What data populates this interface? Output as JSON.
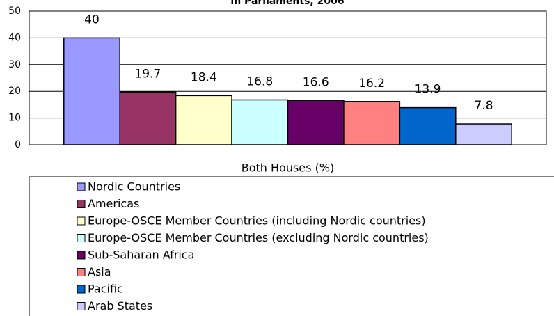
{
  "chart_data": {
    "type": "bar",
    "title": "in Parliaments, 2006",
    "categories": [
      "Both Houses (%)"
    ],
    "series": [
      {
        "name": "Nordic Countries",
        "color": "#9999ff",
        "values": [
          40
        ]
      },
      {
        "name": "Americas",
        "color": "#993366",
        "values": [
          19.7
        ]
      },
      {
        "name": "Europe-OSCE Member Countries (including Nordic countries)",
        "color": "#ffffcc",
        "values": [
          18.4
        ]
      },
      {
        "name": "Europe-OSCE Member Countries (excluding Nordic countries)",
        "color": "#ccffff",
        "values": [
          16.8
        ]
      },
      {
        "name": "Sub-Saharan Africa",
        "color": "#660066",
        "values": [
          16.6
        ]
      },
      {
        "name": "Asia",
        "color": "#ff8080",
        "values": [
          16.2
        ]
      },
      {
        "name": "Pacific",
        "color": "#0066cc",
        "values": [
          13.9
        ]
      },
      {
        "name": "Arab States",
        "color": "#ccccff",
        "values": [
          7.8
        ]
      }
    ],
    "ylim": [
      0,
      50
    ],
    "yticks": [
      0,
      10,
      20,
      30,
      40,
      50
    ],
    "grid": true
  }
}
